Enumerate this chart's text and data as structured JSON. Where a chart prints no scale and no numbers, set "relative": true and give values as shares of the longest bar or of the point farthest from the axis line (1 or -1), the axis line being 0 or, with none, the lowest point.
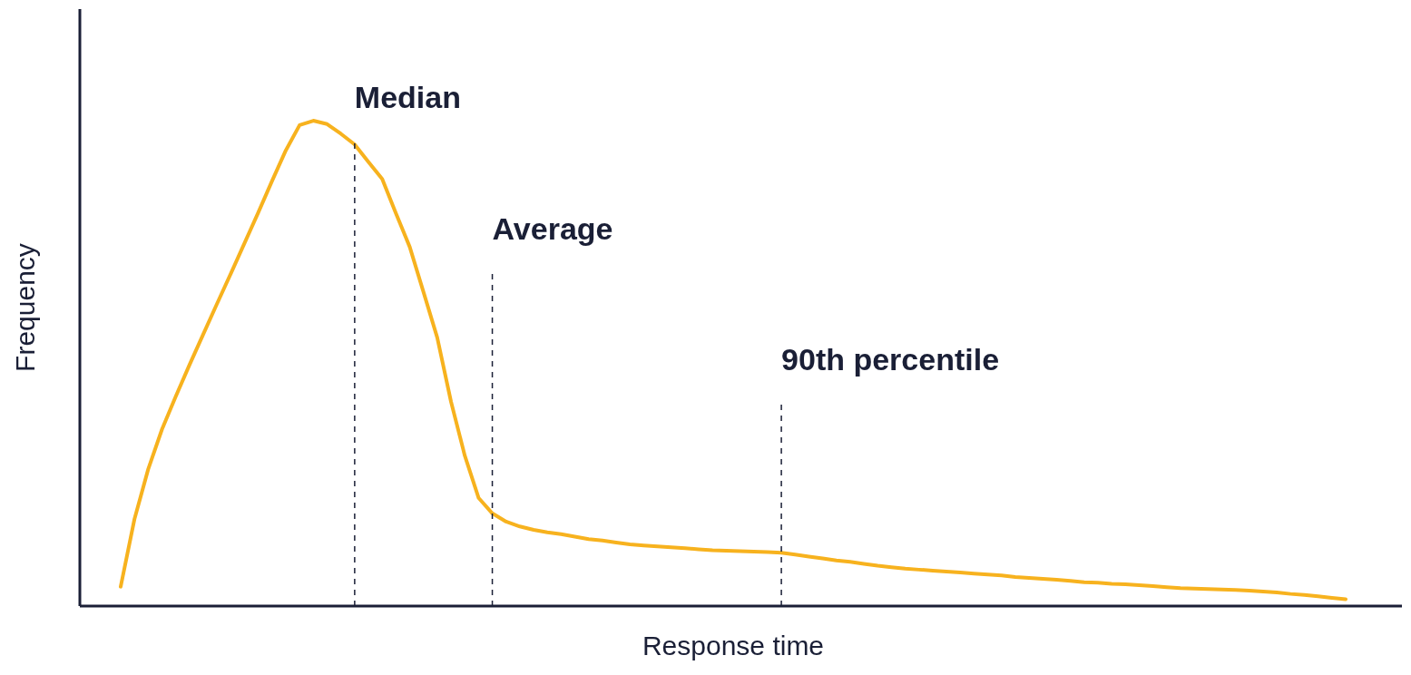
{
  "chart_data": {
    "type": "line",
    "relative": true,
    "xlabel": "Response time",
    "ylabel": "Frequency",
    "tick_labels": false,
    "grid": false,
    "legend": false,
    "marker": "none",
    "line_style": "solid",
    "annotations": [
      "Median",
      "Average",
      "90th percentile"
    ],
    "categories": [
      null,
      null,
      null,
      null,
      null,
      null,
      null,
      null,
      null,
      null,
      null,
      null,
      null,
      null,
      null,
      null,
      null,
      null,
      null,
      null,
      null,
      null,
      null,
      null,
      null,
      null,
      null,
      null,
      null,
      null,
      null,
      null,
      null,
      null,
      null,
      null,
      null,
      null,
      null,
      null,
      null,
      null,
      null,
      null,
      null,
      null,
      null,
      null,
      null,
      null,
      null,
      null,
      null,
      null,
      null,
      null,
      null,
      null,
      null,
      null,
      null,
      null,
      null,
      null,
      null,
      null,
      null,
      null,
      null,
      null,
      null,
      null,
      null,
      null,
      null,
      null,
      null,
      null,
      null,
      null,
      null,
      null,
      null,
      null,
      null,
      null,
      null,
      null,
      null,
      null
    ],
    "series": [
      {
        "color": "#f7b21e",
        "values": [
          0.04,
          0.179,
          0.282,
          0.364,
          0.432,
          0.497,
          0.56,
          0.623,
          0.685,
          0.748,
          0.811,
          0.876,
          0.939,
          0.991,
          1,
          0.993,
          0.973,
          0.951,
          0.915,
          0.88,
          0.809,
          0.74,
          0.647,
          0.553,
          0.421,
          0.31,
          0.223,
          0.191,
          0.174,
          0.164,
          0.157,
          0.152,
          0.148,
          0.143,
          0.138,
          0.135,
          0.131,
          0.127,
          0.125,
          0.123,
          0.121,
          0.119,
          0.117,
          0.115,
          0.114,
          0.113,
          0.112,
          0.111,
          0.11,
          0.106,
          0.102,
          0.098,
          0.094,
          0.091,
          0.087,
          0.083,
          0.08,
          0.077,
          0.075,
          0.073,
          0.071,
          0.069,
          0.067,
          0.065,
          0.063,
          0.06,
          0.058,
          0.056,
          0.054,
          0.052,
          0.049,
          0.048,
          0.046,
          0.045,
          0.043,
          0.041,
          0.039,
          0.037,
          0.036,
          0.035,
          0.034,
          0.033,
          0.032,
          0.03,
          0.028,
          0.025,
          0.023,
          0.02,
          0.017,
          0.014
        ]
      }
    ]
  }
}
